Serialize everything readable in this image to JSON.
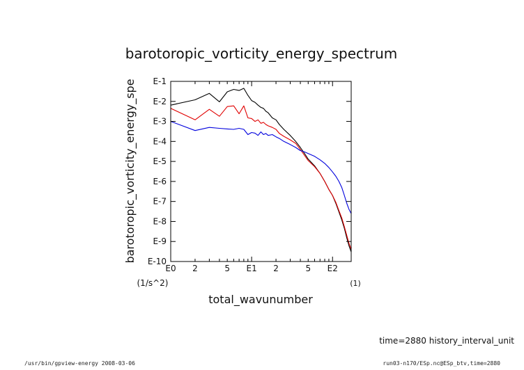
{
  "chart_data": {
    "type": "line",
    "title": "barotoropic_vorticity_energy_spectrum",
    "xlabel": "total_wavunumber",
    "xunit": "(1)",
    "ylabel": "barotoropic_vorticity_energy_spe",
    "yunit": "(1/s^2)",
    "xscale": "log",
    "yscale": "log",
    "xlim": [
      1,
      170
    ],
    "ylim": [
      1e-10,
      0.1
    ],
    "x_ticks": [
      {
        "value": 1,
        "label": "E0"
      },
      {
        "value": 2,
        "label": "2"
      },
      {
        "value": 5,
        "label": "5"
      },
      {
        "value": 10,
        "label": "E1"
      },
      {
        "value": 20,
        "label": "2"
      },
      {
        "value": 50,
        "label": "5"
      },
      {
        "value": 100,
        "label": "E2"
      }
    ],
    "y_ticks": [
      {
        "value": 0.1,
        "label": "E-1"
      },
      {
        "value": 0.01,
        "label": "E-2"
      },
      {
        "value": 0.001,
        "label": "E-3"
      },
      {
        "value": 0.0001,
        "label": "E-4"
      },
      {
        "value": 1e-05,
        "label": "E-5"
      },
      {
        "value": 1e-06,
        "label": "E-6"
      },
      {
        "value": 1e-07,
        "label": "E-7"
      },
      {
        "value": 1e-08,
        "label": "E-8"
      },
      {
        "value": 1e-09,
        "label": "E-9"
      },
      {
        "value": 1e-10,
        "label": "E-10"
      }
    ],
    "grid": false,
    "series": [
      {
        "color": "#000000",
        "x": [
          1,
          2,
          3,
          4,
          5,
          6,
          7,
          8,
          9,
          10,
          11,
          12,
          13,
          14,
          15,
          16,
          18,
          20,
          22,
          25,
          30,
          35,
          40,
          45,
          50,
          60,
          70,
          80,
          90,
          100,
          110,
          120,
          130,
          140,
          150,
          160,
          170
        ],
        "y": [
          0.0065,
          0.012,
          0.025,
          0.0095,
          0.03,
          0.04,
          0.035,
          0.045,
          0.02,
          0.011,
          0.009,
          0.0065,
          0.005,
          0.0045,
          0.0032,
          0.0027,
          0.0015,
          0.0012,
          0.0007,
          0.0004,
          0.0002,
          0.0001,
          5e-05,
          2.5e-05,
          1.3e-05,
          6e-06,
          2.5e-06,
          1e-06,
          4e-07,
          2e-07,
          8e-08,
          3e-08,
          1.2e-08,
          4.5e-09,
          1.5e-09,
          6e-10,
          3e-10
        ]
      },
      {
        "color": "#e00000",
        "x": [
          1,
          2,
          3,
          4,
          5,
          6,
          7,
          8,
          9,
          10,
          11,
          12,
          13,
          14,
          15,
          16,
          18,
          20,
          22,
          25,
          30,
          35,
          40,
          45,
          50,
          60,
          70,
          80,
          90,
          100,
          110,
          120,
          130,
          140,
          150,
          160,
          170
        ],
        "y": [
          0.0045,
          0.0012,
          0.004,
          0.0018,
          0.0055,
          0.006,
          0.0024,
          0.006,
          0.0015,
          0.0014,
          0.001,
          0.0012,
          0.0008,
          0.0009,
          0.0007,
          0.0006,
          0.0005,
          0.0004,
          0.00025,
          0.00018,
          0.00012,
          8e-05,
          4e-05,
          2e-05,
          1.1e-05,
          5.5e-06,
          2.5e-06,
          1e-06,
          4e-07,
          2e-07,
          9e-08,
          3.5e-08,
          1.5e-08,
          5.5e-09,
          2e-09,
          8e-10,
          4e-10
        ]
      },
      {
        "color": "#0000dd",
        "x": [
          1,
          2,
          3,
          4,
          5,
          6,
          7,
          8,
          9,
          10,
          11,
          12,
          13,
          14,
          15,
          16,
          18,
          20,
          22,
          25,
          30,
          35,
          40,
          45,
          50,
          60,
          70,
          80,
          90,
          100,
          110,
          120,
          130,
          140,
          150,
          160,
          170
        ],
        "y": [
          0.001,
          0.00035,
          0.0005,
          0.00045,
          0.00042,
          0.0004,
          0.00045,
          0.0004,
          0.00022,
          0.00028,
          0.00026,
          0.0002,
          0.0003,
          0.00022,
          0.00025,
          0.0002,
          0.00022,
          0.00017,
          0.00014,
          0.0001,
          7e-05,
          5e-05,
          3.5e-05,
          3e-05,
          2.5e-05,
          1.8e-05,
          1.2e-05,
          8e-06,
          5e-06,
          3e-06,
          1.8e-06,
          1e-06,
          5e-07,
          2e-07,
          8e-08,
          4e-08,
          2.5e-08
        ]
      }
    ]
  },
  "annotations": {
    "time_label": "time=2880 history_interval_unit",
    "footer_left": "/usr/bin/gpview-energy  2008-03-06",
    "footer_right": "run03-n170/ESp.nc@ESp_btv,time=2880"
  }
}
